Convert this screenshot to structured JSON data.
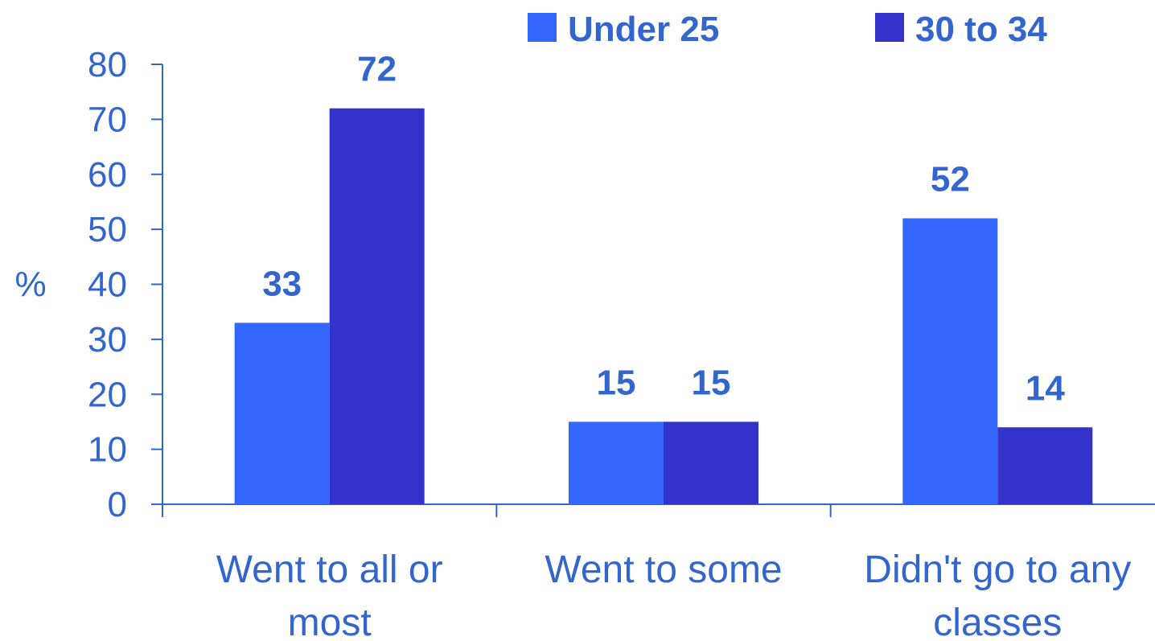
{
  "chart_data": {
    "type": "bar",
    "categories": [
      [
        "Went to all or",
        "most"
      ],
      [
        "Went to some"
      ],
      [
        "Didn't go to any",
        "classes"
      ]
    ],
    "series": [
      {
        "name": "Under 25",
        "values": [
          33,
          15,
          52
        ],
        "color": "#3366ff"
      },
      {
        "name": "30 to 34",
        "values": [
          72,
          15,
          14
        ],
        "color": "#3333cc"
      }
    ],
    "ylabel": "%",
    "ylim": [
      0,
      80
    ],
    "yticks": [
      0,
      10,
      20,
      30,
      40,
      50,
      60,
      70,
      80
    ],
    "legend_position": "top-right",
    "grid": false,
    "axis_color": "#3366cc",
    "text_color": "#3366cc"
  }
}
